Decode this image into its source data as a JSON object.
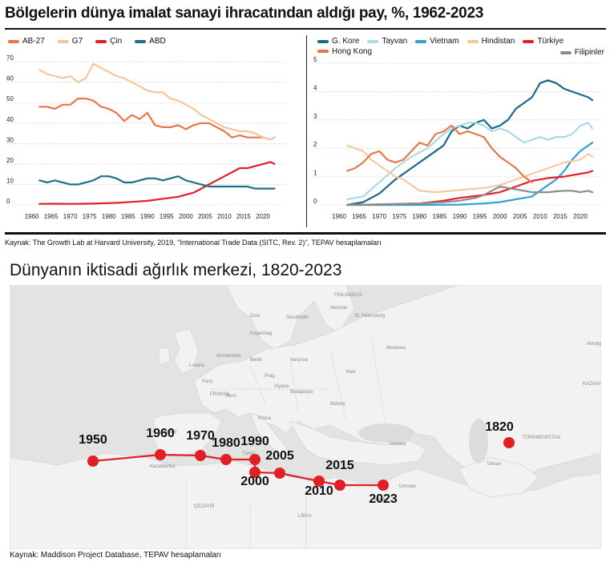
{
  "page": {
    "title1": "Bölgelerin dünya imalat sanayi ihracatından aldığı pay, %, 1962-2023",
    "source1": "Kaynak: The Growth Lab at Harvard University, 2019, \"International Trade Data (SITC, Rev. 2)\", TEPAV hesaplamaları",
    "title2": "Dünyanın iktisadi ağırlık merkezi, 1820-2023",
    "source2": "Kaynak: Maddison Project Database, TEPAV hesaplamaları"
  },
  "colors": {
    "AB-27": "#e8764a",
    "G7": "#f6c59a",
    "Çin": "#e41e26",
    "ABD": "#1f6f8b",
    "G. Kore": "#176a88",
    "Tayvan": "#a8dce4",
    "Vietnam": "#2fa3d0",
    "Hindistan": "#f7c9a0",
    "Türkiye": "#e41e26",
    "Hong Kong": "#e8764a",
    "Filipinler": "#8c8c8c",
    "route": "#e01f26"
  },
  "chart_data": [
    {
      "type": "line",
      "title": "Bölgelerin dünya imalat sanayi ihracatından aldığı pay, %, 1962-2023",
      "xlim": [
        1958,
        2025
      ],
      "ylim": [
        0,
        72
      ],
      "yticks": [
        0,
        10,
        20,
        30,
        40,
        50,
        60,
        70
      ],
      "xticks": [
        1960,
        1965,
        1970,
        1975,
        1980,
        1985,
        1990,
        1995,
        2000,
        2005,
        2010,
        2015,
        2020
      ],
      "series": [
        {
          "name": "AB-27",
          "x": [
            1962,
            1964,
            1966,
            1968,
            1970,
            1972,
            1974,
            1976,
            1978,
            1980,
            1982,
            1984,
            1986,
            1988,
            1990,
            1992,
            1994,
            1996,
            1998,
            2000,
            2002,
            2004,
            2006,
            2008,
            2010,
            2012,
            2014,
            2016,
            2018,
            2020,
            2022,
            2023
          ],
          "values": [
            48,
            48,
            47,
            49,
            49,
            52,
            52,
            51,
            48,
            47,
            45,
            41,
            44,
            42,
            45,
            39,
            38,
            38,
            39,
            37,
            39,
            40,
            40,
            38,
            36,
            33,
            34,
            33,
            33,
            33,
            32,
            33
          ]
        },
        {
          "name": "G7",
          "x": [
            1962,
            1964,
            1966,
            1968,
            1970,
            1972,
            1974,
            1976,
            1978,
            1980,
            1982,
            1984,
            1986,
            1988,
            1990,
            1992,
            1994,
            1996,
            1998,
            2000,
            2002,
            2004,
            2006,
            2008,
            2010,
            2012,
            2014,
            2016,
            2018,
            2020,
            2022,
            2023
          ],
          "values": [
            66,
            64,
            63,
            62,
            63,
            60,
            62,
            69,
            67,
            65,
            63,
            62,
            60,
            58,
            56,
            55,
            55,
            52,
            51,
            49,
            47,
            44,
            42,
            40,
            38,
            37,
            36,
            36,
            35,
            33,
            32,
            33
          ]
        },
        {
          "name": "Çin",
          "x": [
            1962,
            1966,
            1970,
            1974,
            1978,
            1982,
            1986,
            1990,
            1994,
            1998,
            2000,
            2002,
            2004,
            2006,
            2008,
            2010,
            2012,
            2014,
            2016,
            2018,
            2020,
            2022,
            2023
          ],
          "values": [
            0.5,
            0.6,
            0.5,
            0.6,
            0.8,
            1,
            1.5,
            2,
            3,
            4,
            5,
            6,
            8,
            10,
            12,
            14,
            16,
            18,
            18,
            19,
            20,
            21,
            20
          ]
        },
        {
          "name": "ABD",
          "x": [
            1962,
            1964,
            1966,
            1968,
            1970,
            1972,
            1974,
            1976,
            1978,
            1980,
            1982,
            1984,
            1986,
            1988,
            1990,
            1992,
            1994,
            1996,
            1998,
            2000,
            2002,
            2004,
            2006,
            2008,
            2010,
            2012,
            2014,
            2016,
            2018,
            2020,
            2022,
            2023
          ],
          "values": [
            12,
            11,
            12,
            11,
            10,
            10,
            11,
            12,
            14,
            14,
            13,
            11,
            11,
            12,
            13,
            13,
            12,
            13,
            14,
            12,
            11,
            10,
            9,
            9,
            9,
            9,
            9,
            9,
            8,
            8,
            8,
            8
          ]
        }
      ]
    },
    {
      "type": "line",
      "xlim": [
        1958,
        2025
      ],
      "ylim": [
        0,
        5.2
      ],
      "yticks": [
        0,
        1,
        2,
        3,
        4,
        5
      ],
      "xticks": [
        1960,
        1965,
        1970,
        1975,
        1980,
        1985,
        1990,
        1995,
        2000,
        2005,
        2010,
        2015,
        2020
      ],
      "series": [
        {
          "name": "G. Kore",
          "x": [
            1962,
            1966,
            1970,
            1974,
            1978,
            1982,
            1986,
            1988,
            1990,
            1992,
            1994,
            1996,
            1998,
            2000,
            2002,
            2004,
            2006,
            2008,
            2010,
            2012,
            2014,
            2016,
            2018,
            2020,
            2022,
            2023
          ],
          "values": [
            0,
            0.1,
            0.4,
            0.9,
            1.3,
            1.7,
            2.1,
            2.6,
            2.8,
            2.7,
            2.9,
            3.0,
            2.7,
            2.8,
            3.0,
            3.4,
            3.6,
            3.8,
            4.3,
            4.4,
            4.3,
            4.1,
            4.0,
            3.9,
            3.8,
            3.7
          ]
        },
        {
          "name": "Tayvan",
          "x": [
            1962,
            1966,
            1970,
            1974,
            1978,
            1982,
            1986,
            1988,
            1990,
            1992,
            1994,
            1996,
            1998,
            2000,
            2002,
            2004,
            2006,
            2008,
            2010,
            2012,
            2014,
            2016,
            2018,
            2020,
            2022,
            2023
          ],
          "values": [
            0.2,
            0.3,
            0.8,
            1.3,
            1.7,
            2.0,
            2.5,
            2.7,
            2.8,
            2.9,
            2.9,
            2.8,
            2.6,
            2.7,
            2.6,
            2.4,
            2.2,
            2.3,
            2.4,
            2.3,
            2.4,
            2.4,
            2.5,
            2.8,
            2.9,
            2.7
          ]
        },
        {
          "name": "Vietnam",
          "x": [
            1962,
            1970,
            1980,
            1990,
            1996,
            2000,
            2004,
            2008,
            2010,
            2012,
            2014,
            2016,
            2018,
            2020,
            2022,
            2023
          ],
          "values": [
            0,
            0,
            0,
            0.01,
            0.05,
            0.1,
            0.2,
            0.3,
            0.5,
            0.7,
            0.9,
            1.2,
            1.6,
            1.9,
            2.1,
            2.2
          ]
        },
        {
          "name": "Hindistan",
          "x": [
            1962,
            1964,
            1966,
            1968,
            1970,
            1972,
            1974,
            1976,
            1978,
            1980,
            1984,
            1988,
            1992,
            1996,
            2000,
            2004,
            2008,
            2012,
            2016,
            2020,
            2022,
            2023
          ],
          "values": [
            2.1,
            2.0,
            1.9,
            1.6,
            1.4,
            1.2,
            1.0,
            0.9,
            0.7,
            0.5,
            0.45,
            0.5,
            0.55,
            0.6,
            0.7,
            0.9,
            1.1,
            1.3,
            1.5,
            1.6,
            1.8,
            1.7
          ]
        },
        {
          "name": "Türkiye",
          "x": [
            1962,
            1970,
            1980,
            1986,
            1990,
            1996,
            2000,
            2004,
            2008,
            2012,
            2016,
            2020,
            2022,
            2023
          ],
          "values": [
            0,
            0.02,
            0.05,
            0.15,
            0.25,
            0.35,
            0.45,
            0.65,
            0.85,
            0.95,
            1.0,
            1.1,
            1.15,
            1.2
          ]
        },
        {
          "name": "Hong Kong",
          "x": [
            1962,
            1964,
            1966,
            1968,
            1970,
            1972,
            1974,
            1976,
            1978,
            1980,
            1982,
            1984,
            1986,
            1988,
            1990,
            1992,
            1994,
            1996,
            1998,
            2000,
            2002,
            2004,
            2006,
            2008
          ],
          "values": [
            1.2,
            1.3,
            1.5,
            1.8,
            1.9,
            1.6,
            1.5,
            1.6,
            1.9,
            2.2,
            2.1,
            2.5,
            2.6,
            2.8,
            2.5,
            2.6,
            2.5,
            2.4,
            2.0,
            1.7,
            1.5,
            1.3,
            1.0,
            0.8
          ]
        },
        {
          "name": "Filipinler",
          "x": [
            1962,
            1970,
            1980,
            1986,
            1990,
            1994,
            1996,
            1998,
            2000,
            2002,
            2004,
            2006,
            2008,
            2010,
            2012,
            2014,
            2016,
            2018,
            2020,
            2022,
            2023
          ],
          "values": [
            0,
            0.02,
            0.05,
            0.1,
            0.15,
            0.25,
            0.35,
            0.5,
            0.65,
            0.6,
            0.55,
            0.5,
            0.45,
            0.45,
            0.45,
            0.48,
            0.5,
            0.5,
            0.45,
            0.5,
            0.45
          ]
        }
      ]
    }
  ],
  "map": {
    "route": [
      {
        "year": "1950",
        "label_pos": "above"
      },
      {
        "year": "1960",
        "label_pos": "above"
      },
      {
        "year": "1970",
        "label_pos": "above"
      },
      {
        "year": "1980",
        "label_pos": "above"
      },
      {
        "year": "1990",
        "label_pos": "above"
      },
      {
        "year": "2000",
        "label_pos": "below"
      },
      {
        "year": "2005",
        "label_pos": "above"
      },
      {
        "year": "2010",
        "label_pos": "below"
      },
      {
        "year": "2015",
        "label_pos": "above"
      },
      {
        "year": "2023",
        "label_pos": "below"
      }
    ],
    "start_point": {
      "year": "1820"
    },
    "place_labels": [
      "FINLANDIYA",
      "Helsinki",
      "Stockholm",
      "St. Petersburg",
      "Oslo",
      "Moskova",
      "Kopenhag",
      "Berlin",
      "Varşova",
      "Kiev",
      "Londra",
      "Amsterdam",
      "Prag",
      "Paris",
      "FRANSA",
      "Viyana",
      "Budapeşte",
      "Bern",
      "Roma",
      "Bükreş",
      "Madrid",
      "Ankara",
      "Tahran",
      "Kazablanka",
      "Tunus",
      "Kahire",
      "Umman",
      "ÇEZAYİR",
      "LİBYA",
      "TÜRKMENİSTAN",
      "Almaty",
      "KAZAKH"
    ]
  }
}
